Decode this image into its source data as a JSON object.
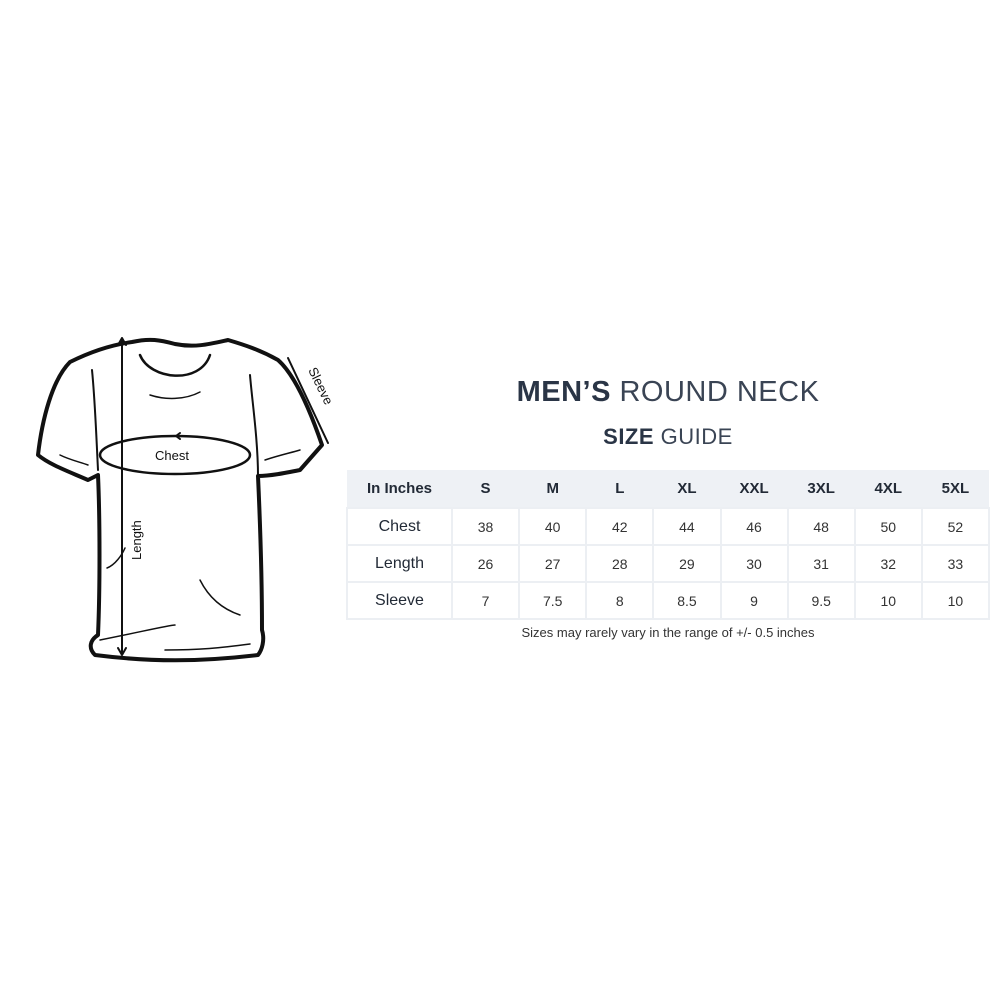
{
  "title": {
    "bold": "MEN’S",
    "light": "ROUND NECK"
  },
  "subtitle": {
    "bold": "SIZE",
    "light": "GUIDE"
  },
  "diagram": {
    "labels": {
      "chest": "Chest",
      "length": "Length",
      "sleeve": "Sleeve"
    }
  },
  "table": {
    "headers": [
      "In Inches",
      "S",
      "M",
      "L",
      "XL",
      "XXL",
      "3XL",
      "4XL",
      "5XL"
    ],
    "rows": [
      {
        "label": "Chest",
        "values": [
          "38",
          "40",
          "42",
          "44",
          "46",
          "48",
          "50",
          "52"
        ]
      },
      {
        "label": "Length",
        "values": [
          "26",
          "27",
          "28",
          "29",
          "30",
          "31",
          "32",
          "33"
        ]
      },
      {
        "label": "Sleeve",
        "values": [
          "7",
          "7.5",
          "8",
          "8.5",
          "9",
          "9.5",
          "10",
          "10"
        ]
      }
    ]
  },
  "note": "Sizes may rarely vary in the range of +/- 0.5 inches",
  "colors": {
    "title": "#2a3546",
    "header_bg": "#eef1f5",
    "grid": "#eceff3"
  }
}
